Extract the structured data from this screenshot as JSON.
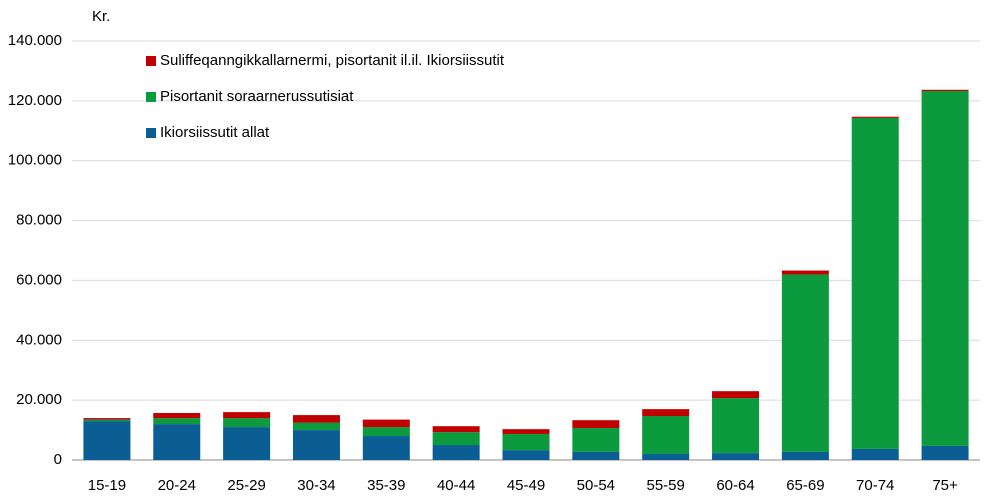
{
  "chart_data": {
    "type": "stacked_bar",
    "y_label": "Kr.",
    "categories": [
      "15-19",
      "20-24",
      "25-29",
      "30-34",
      "35-39",
      "40-44",
      "45-49",
      "50-54",
      "55-59",
      "60-64",
      "65-69",
      "70-74",
      "75+"
    ],
    "series": [
      {
        "name": "Ikiorsiissutit allat",
        "color": "#0b5e94",
        "values": [
          13000,
          12000,
          11000,
          10000,
          8000,
          5000,
          3300,
          2700,
          2000,
          2300,
          2700,
          3700,
          4700
        ]
      },
      {
        "name": "Pisortanit soraarnerussutisiat",
        "color": "#0c9a3e",
        "values": [
          500,
          2000,
          3000,
          2500,
          3000,
          4300,
          5400,
          8000,
          12700,
          18400,
          59300,
          110600,
          118600
        ]
      },
      {
        "name": "Suliffeqanngikkallarnermi, pisortanit il.il. Ikiorsiissutit",
        "color": "#c00000",
        "values": [
          500,
          1700,
          2000,
          2500,
          2500,
          2000,
          1600,
          2600,
          2300,
          2300,
          1300,
          400,
          400
        ]
      }
    ],
    "ylim": [
      0,
      140000
    ],
    "yticks": [
      0,
      {
        "value": 20000,
        "label": "20.000"
      },
      {
        "value": 40000,
        "label": "40.000"
      },
      {
        "value": 60000,
        "label": "60.000"
      },
      {
        "value": 80000,
        "label": "80.000"
      },
      {
        "value": 100000,
        "label": "100.000"
      },
      {
        "value": 120000,
        "label": "120.000"
      },
      {
        "value": 140000,
        "label": "140.000"
      }
    ],
    "grid": true
  }
}
